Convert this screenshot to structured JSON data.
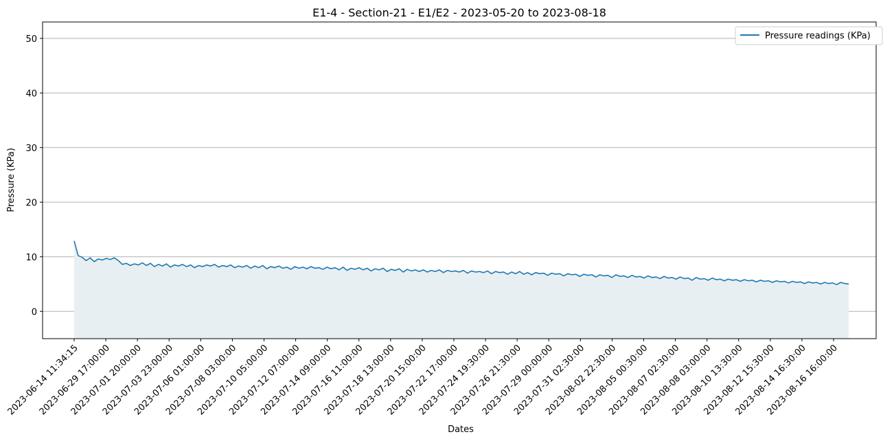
{
  "chart_data": {
    "type": "area",
    "title": "E1-4 - Section-21 - E1/E2 - 2023-05-20 to 2023-08-18",
    "xlabel": "Dates",
    "ylabel": "Pressure (KPa)",
    "ylim": [
      -5,
      53
    ],
    "yticks": [
      0,
      10,
      20,
      30,
      40,
      50
    ],
    "grid": "horizontal",
    "legend_position": "top-right",
    "series_color": "#1f77b4",
    "fill_color": "#e8eff2",
    "grid_color": "#b0b0b0",
    "xticks": [
      "2023-06-14 11:34:15",
      "2023-06-29 17:00:00",
      "2023-07-01 20:00:00",
      "2023-07-03 23:00:00",
      "2023-07-06 01:00:00",
      "2023-07-08 03:00:00",
      "2023-07-10 05:00:00",
      "2023-07-12 07:00:00",
      "2023-07-14 09:00:00",
      "2023-07-16 11:00:00",
      "2023-07-18 13:00:00",
      "2023-07-20 15:00:00",
      "2023-07-22 17:00:00",
      "2023-07-24 19:30:00",
      "2023-07-26 21:30:00",
      "2023-07-29 00:00:00",
      "2023-07-31 02:30:00",
      "2023-08-02 22:30:00",
      "2023-08-05 00:30:00",
      "2023-08-07 02:30:00",
      "2023-08-08 03:00:00",
      "2023-08-10 13:30:00",
      "2023-08-12 15:30:00",
      "2023-08-14 16:30:00",
      "2023-08-16 16:00:00"
    ],
    "series": [
      {
        "name": "Pressure readings (KPa)",
        "values": [
          12.9,
          10.2,
          9.9,
          9.3,
          9.8,
          9.1,
          9.6,
          9.4,
          9.7,
          9.5,
          9.8,
          9.3,
          8.6,
          8.8,
          8.4,
          8.7,
          8.5,
          8.9,
          8.4,
          8.8,
          8.2,
          8.6,
          8.3,
          8.7,
          8.1,
          8.5,
          8.3,
          8.6,
          8.2,
          8.5,
          8.0,
          8.4,
          8.2,
          8.5,
          8.3,
          8.6,
          8.1,
          8.4,
          8.2,
          8.5,
          8.0,
          8.3,
          8.1,
          8.4,
          7.9,
          8.3,
          8.0,
          8.4,
          7.8,
          8.2,
          8.0,
          8.3,
          7.9,
          8.1,
          7.7,
          8.2,
          7.9,
          8.1,
          7.8,
          8.2,
          7.9,
          8.0,
          7.7,
          8.1,
          7.8,
          8.0,
          7.6,
          8.1,
          7.5,
          7.9,
          7.7,
          8.0,
          7.6,
          7.9,
          7.4,
          7.8,
          7.6,
          7.9,
          7.3,
          7.7,
          7.5,
          7.8,
          7.2,
          7.7,
          7.4,
          7.6,
          7.3,
          7.6,
          7.2,
          7.5,
          7.3,
          7.6,
          7.1,
          7.5,
          7.3,
          7.4,
          7.2,
          7.5,
          7.0,
          7.4,
          7.2,
          7.3,
          7.1,
          7.4,
          6.9,
          7.3,
          7.1,
          7.2,
          6.8,
          7.2,
          6.9,
          7.3,
          6.8,
          7.1,
          6.7,
          7.1,
          6.9,
          7.0,
          6.6,
          7.0,
          6.8,
          6.9,
          6.5,
          6.9,
          6.7,
          6.8,
          6.4,
          6.8,
          6.6,
          6.7,
          6.3,
          6.7,
          6.5,
          6.6,
          6.2,
          6.7,
          6.4,
          6.5,
          6.2,
          6.6,
          6.3,
          6.4,
          6.1,
          6.5,
          6.2,
          6.3,
          6.0,
          6.4,
          6.1,
          6.2,
          5.9,
          6.3,
          6.0,
          6.1,
          5.7,
          6.2,
          5.9,
          6.0,
          5.7,
          6.1,
          5.8,
          5.9,
          5.6,
          5.9,
          5.7,
          5.8,
          5.5,
          5.8,
          5.6,
          5.7,
          5.4,
          5.7,
          5.5,
          5.6,
          5.3,
          5.6,
          5.4,
          5.5,
          5.2,
          5.5,
          5.3,
          5.4,
          5.1,
          5.4,
          5.2,
          5.3,
          5.0,
          5.3,
          5.1,
          5.2,
          4.9,
          5.3,
          5.1,
          5.0
        ]
      }
    ]
  }
}
